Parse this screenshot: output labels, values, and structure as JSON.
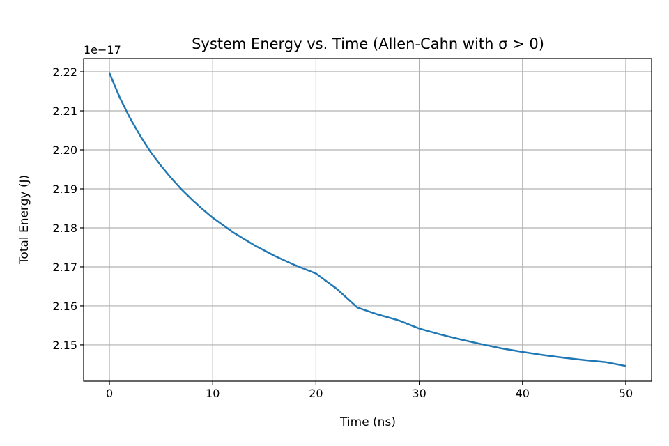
{
  "chart_data": {
    "type": "line",
    "title": "System Energy vs. Time (Allen-Cahn with σ > 0)",
    "xlabel": "Time (ns)",
    "ylabel": "Total Energy (J)",
    "offset_text": "1e−17",
    "xlim": [
      -2.5,
      52.5
    ],
    "ylim": [
      2.1407,
      2.2234
    ],
    "xticks": [
      0,
      10,
      20,
      30,
      40,
      50
    ],
    "xtick_labels": [
      "0",
      "10",
      "20",
      "30",
      "40",
      "50"
    ],
    "yticks": [
      2.15,
      2.16,
      2.17,
      2.18,
      2.19,
      2.2,
      2.21,
      2.22
    ],
    "ytick_labels": [
      "2.15",
      "2.16",
      "2.17",
      "2.18",
      "2.19",
      "2.20",
      "2.21",
      "2.22"
    ],
    "grid": true,
    "series": [
      {
        "color": "#1f77b4",
        "x": [
          0,
          1,
          2,
          3,
          4,
          5,
          6,
          7,
          8,
          9,
          10,
          12,
          14,
          16,
          18,
          20,
          22,
          24,
          26,
          28,
          30,
          32,
          34,
          36,
          38,
          40,
          42,
          44,
          46,
          48,
          50
        ],
        "y": [
          2.2197,
          2.2134,
          2.2081,
          2.2035,
          2.1994,
          2.1959,
          2.1927,
          2.1898,
          2.1872,
          2.1848,
          2.1826,
          2.1788,
          2.1756,
          2.1728,
          2.1704,
          2.1683,
          2.1644,
          2.1596,
          2.1578,
          2.1563,
          2.1542,
          2.1527,
          2.1514,
          2.1502,
          2.1491,
          2.1482,
          2.1474,
          2.1467,
          2.1461,
          2.1456,
          2.1446
        ]
      }
    ]
  }
}
